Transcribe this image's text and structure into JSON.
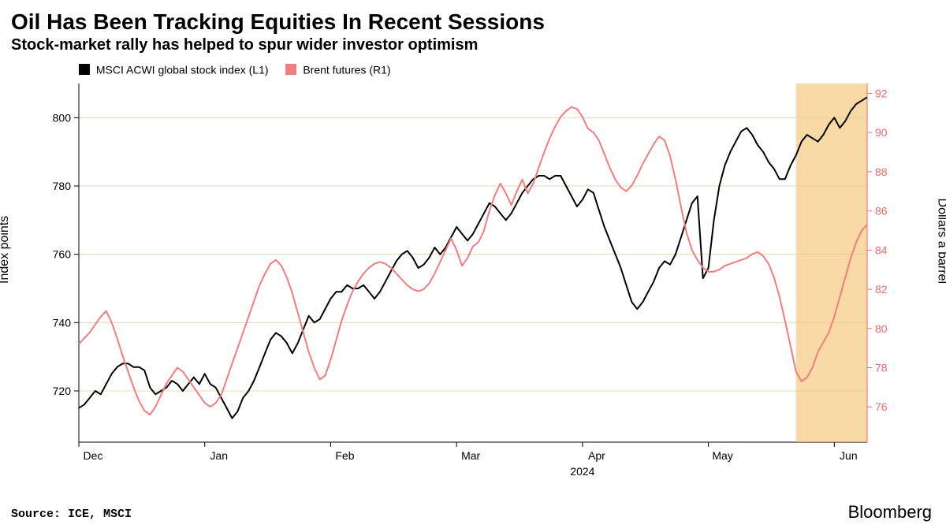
{
  "title": "Oil Has Been Tracking Equities In Recent Sessions",
  "subtitle": "Stock-market rally has helped to spur wider investor optimism",
  "source": "Source: ICE, MSCI",
  "brand": "Bloomberg",
  "ylabel_left": "Index points",
  "ylabel_right": "Dollars a barrel",
  "legend": [
    {
      "label": "MSCI ACWI global stock index (L1)",
      "color": "#000000"
    },
    {
      "label": "Brent futures (R1)",
      "color": "#f27e7e"
    }
  ],
  "chart": {
    "type": "line-dual-axis",
    "background_color": "#ffffff",
    "grid_color": "#e9d8b6",
    "highlight": {
      "start": 131,
      "end": 144,
      "fill": "#f6c477",
      "opacity": 0.65
    },
    "x": {
      "ticks": [
        0,
        23,
        46,
        69,
        92,
        115,
        138
      ],
      "labels": [
        "Dec",
        "Jan",
        "Feb",
        "Mar",
        "Apr",
        "May",
        "Jun"
      ],
      "max_index": 144,
      "year_label": "2024",
      "year_at": 92
    },
    "y_left": {
      "min": 705,
      "max": 810,
      "ticks": [
        720,
        740,
        760,
        780,
        800
      ],
      "color": "#000000"
    },
    "y_right": {
      "min": 74.2,
      "max": 92.5,
      "ticks": [
        76,
        78,
        80,
        82,
        84,
        86,
        88,
        90,
        92
      ],
      "color": "#ee6b6b"
    },
    "series": [
      {
        "name": "msci",
        "axis": "left",
        "color": "#000000",
        "width": 2,
        "values": [
          715,
          716,
          718,
          720,
          719,
          722,
          725,
          727,
          728,
          728,
          727,
          727,
          726,
          721,
          719,
          720,
          721,
          723,
          722,
          720,
          722,
          724,
          722,
          725,
          722,
          721,
          718,
          715,
          712,
          714,
          718,
          720,
          723,
          727,
          731,
          735,
          737,
          736,
          734,
          731,
          734,
          738,
          742,
          740,
          741,
          744,
          747,
          749,
          749,
          751,
          750,
          750,
          751,
          749,
          747,
          749,
          752,
          755,
          758,
          760,
          761,
          759,
          756,
          757,
          759,
          762,
          760,
          762,
          765,
          768,
          766,
          764,
          766,
          769,
          772,
          775,
          774,
          772,
          770,
          772,
          775,
          778,
          780,
          782,
          783,
          783,
          782,
          783,
          783,
          780,
          777,
          774,
          776,
          779,
          778,
          773,
          768,
          764,
          760,
          756,
          751,
          746,
          744,
          746,
          749,
          752,
          756,
          758,
          757,
          760,
          765,
          770,
          775,
          777,
          753,
          756,
          770,
          780,
          786,
          790,
          793,
          796,
          797,
          795,
          792,
          790,
          787,
          785,
          782,
          782,
          786,
          789,
          793,
          795,
          794,
          793,
          795,
          798,
          800,
          797,
          799,
          802,
          804,
          805,
          806
        ]
      },
      {
        "name": "brent",
        "axis": "right",
        "color": "#f27e7e",
        "width": 2,
        "values": [
          79.2,
          79.5,
          79.8,
          80.2,
          80.6,
          80.9,
          80.3,
          79.5,
          78.6,
          77.8,
          77.0,
          76.3,
          75.8,
          75.6,
          76.0,
          76.6,
          77.2,
          77.6,
          78.0,
          77.8,
          77.4,
          77.0,
          76.6,
          76.2,
          76.0,
          76.2,
          76.6,
          77.4,
          78.2,
          79.0,
          79.8,
          80.6,
          81.4,
          82.2,
          82.8,
          83.3,
          83.5,
          83.2,
          82.6,
          81.8,
          80.8,
          79.8,
          78.8,
          78.0,
          77.4,
          77.6,
          78.4,
          79.4,
          80.4,
          81.2,
          81.9,
          82.4,
          82.8,
          83.1,
          83.3,
          83.4,
          83.3,
          83.1,
          82.8,
          82.5,
          82.2,
          82.0,
          81.9,
          82.0,
          82.3,
          82.8,
          83.4,
          84.0,
          84.6,
          84.0,
          83.2,
          83.6,
          84.2,
          84.4,
          85.0,
          86.0,
          86.8,
          87.4,
          86.9,
          86.3,
          87.0,
          87.6,
          86.9,
          87.4,
          88.2,
          89.0,
          89.7,
          90.3,
          90.8,
          91.1,
          91.3,
          91.2,
          90.8,
          90.2,
          90.0,
          89.6,
          88.9,
          88.2,
          87.6,
          87.2,
          87.0,
          87.3,
          87.8,
          88.4,
          88.9,
          89.4,
          89.8,
          89.6,
          88.8,
          87.6,
          86.2,
          84.9,
          84.0,
          83.5,
          83.1,
          82.9,
          82.9,
          83.0,
          83.2,
          83.3,
          83.4,
          83.5,
          83.6,
          83.8,
          83.9,
          83.7,
          83.3,
          82.6,
          81.6,
          80.4,
          79.1,
          77.8,
          77.3,
          77.5,
          78.0,
          78.8,
          79.3,
          79.8,
          80.6,
          81.6,
          82.6,
          83.6,
          84.4,
          85.0,
          85.3
        ]
      }
    ]
  }
}
